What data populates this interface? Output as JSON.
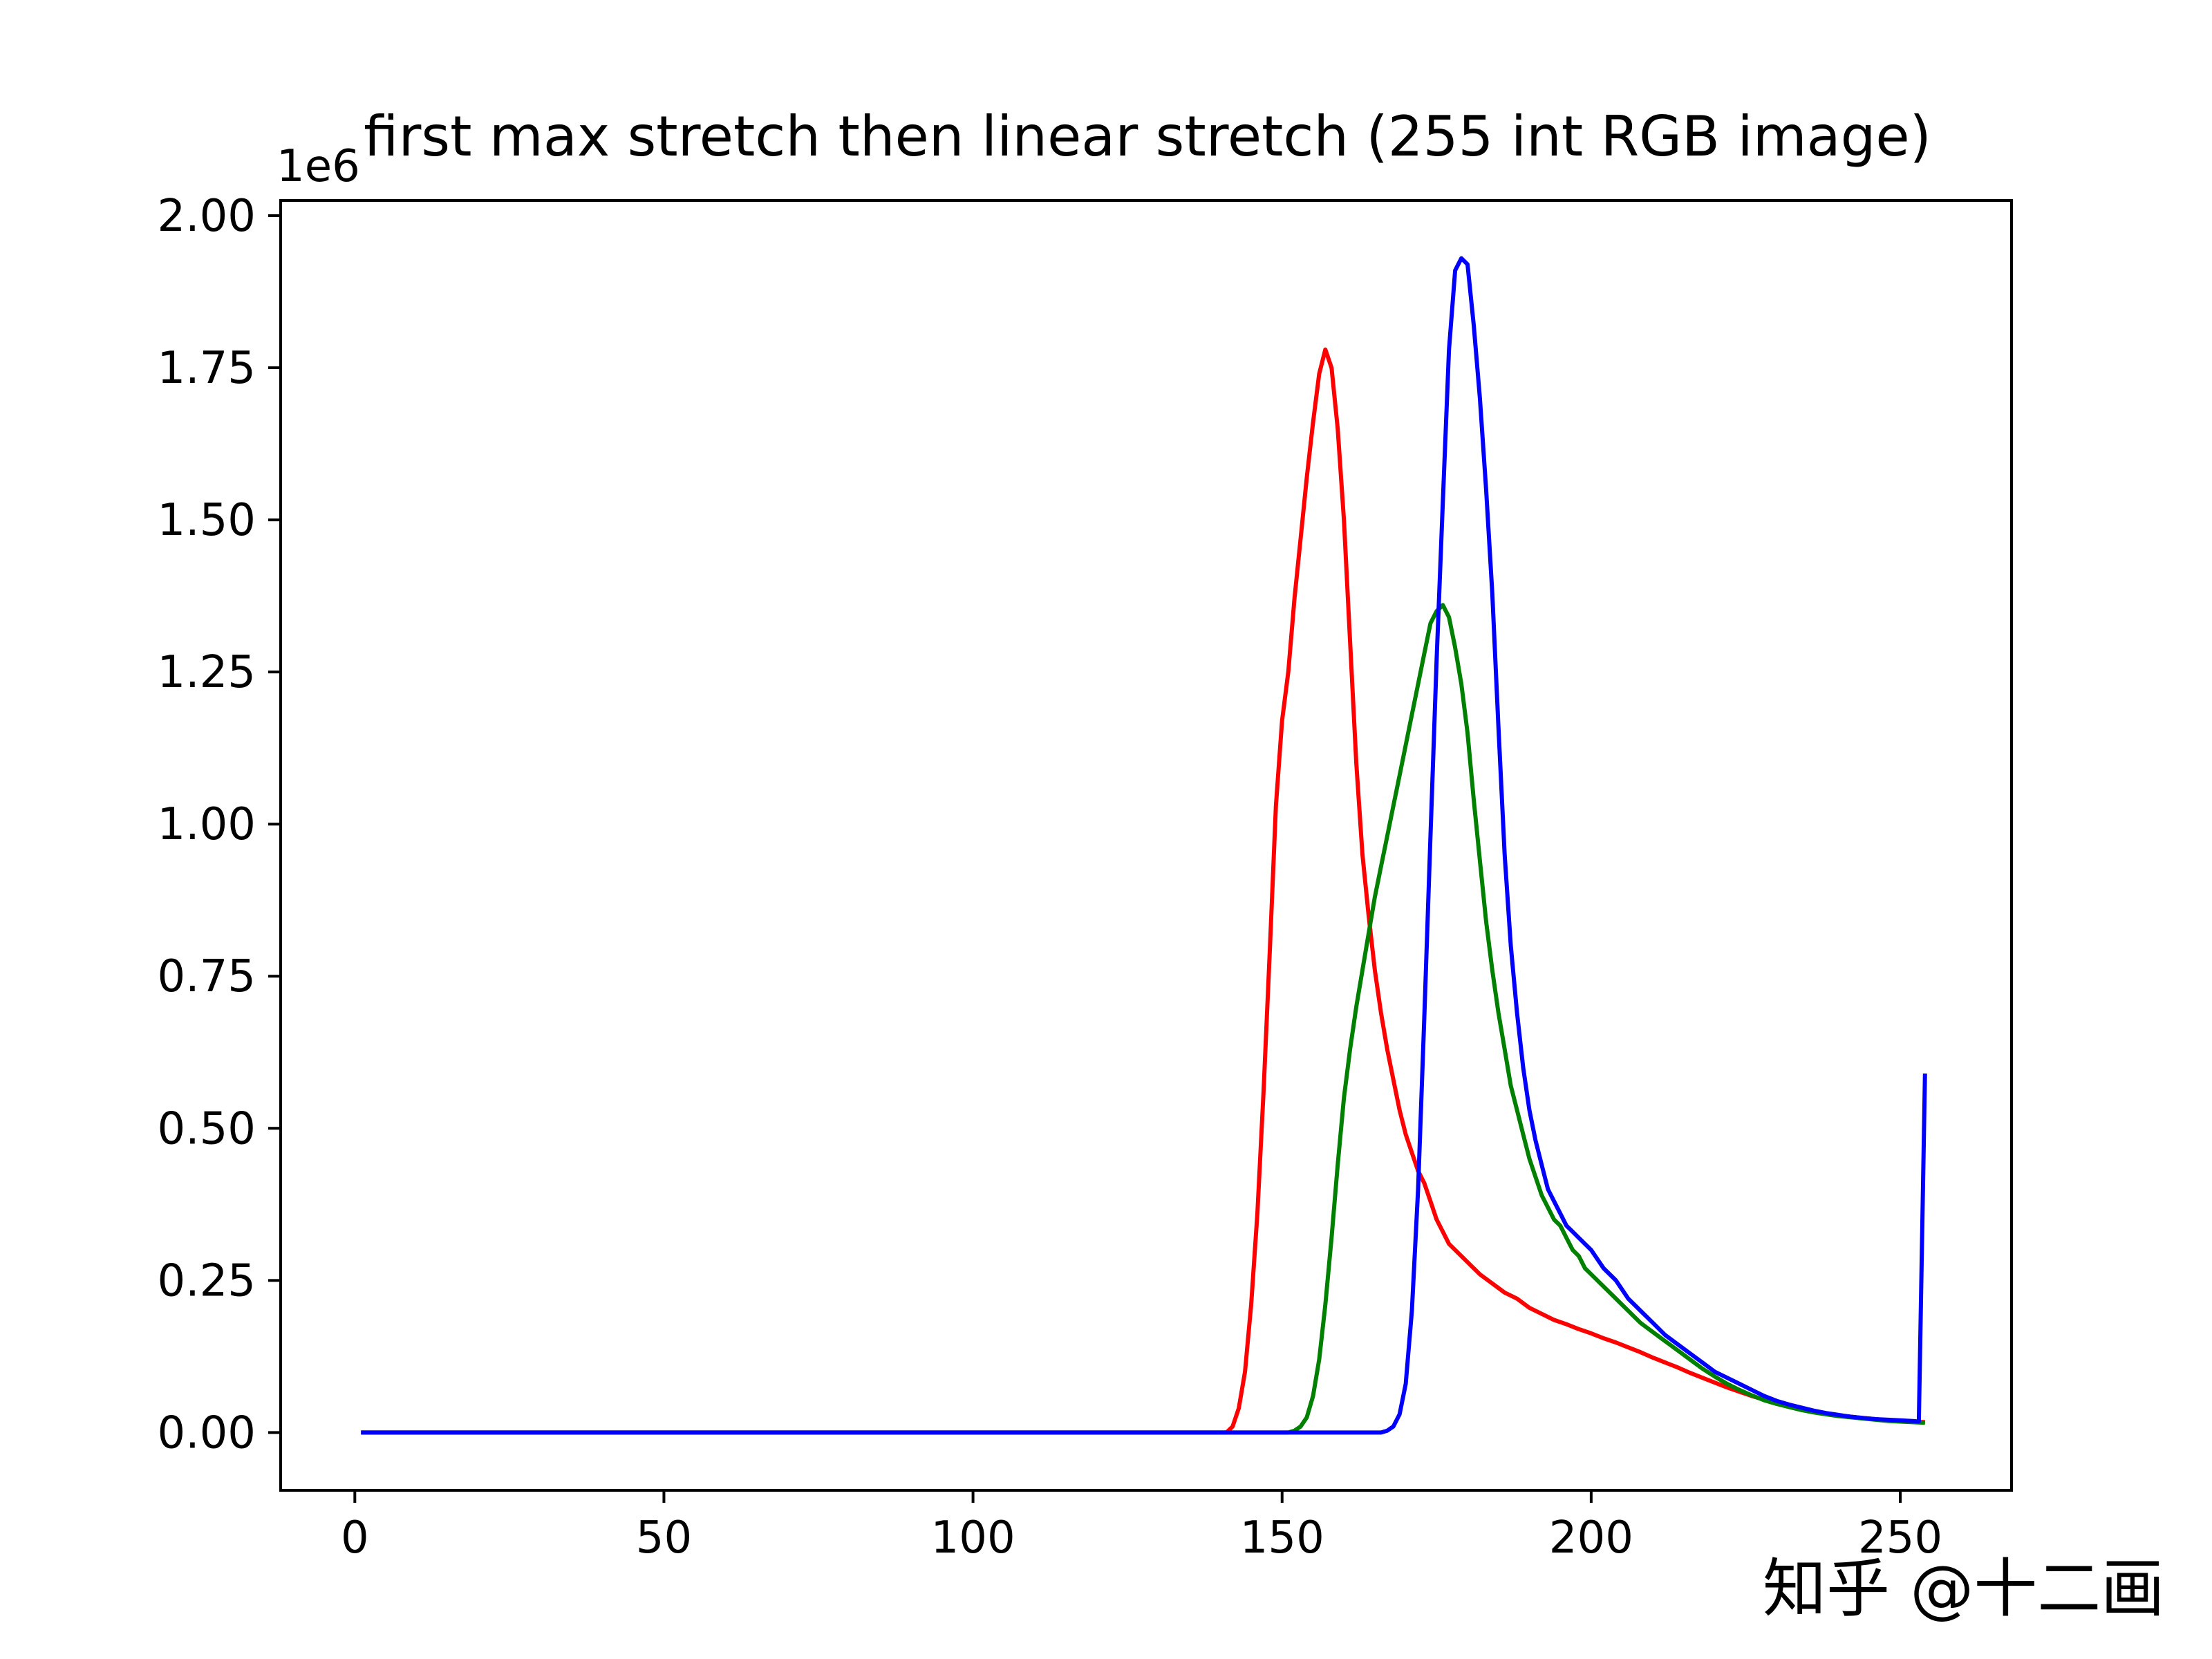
{
  "chart_data": {
    "type": "line",
    "title": "first max stretch then linear stretch (255 int RGB image)",
    "xlabel": "",
    "ylabel": "",
    "y_offset_text": "1e6",
    "y_scale_factor": 1000000,
    "xlim": [
      -12,
      268
    ],
    "ylim": [
      -0.095,
      2.025
    ],
    "x_ticks": [
      0,
      50,
      100,
      150,
      200,
      250
    ],
    "x_tick_labels": [
      "0",
      "50",
      "100",
      "150",
      "200",
      "250"
    ],
    "y_ticks": [
      0,
      0.25,
      0.5,
      0.75,
      1.0,
      1.25,
      1.5,
      1.75,
      2.0
    ],
    "y_tick_labels": [
      "0.00",
      "0.25",
      "0.50",
      "0.75",
      "1.00",
      "1.25",
      "1.50",
      "1.75",
      "2.00"
    ],
    "grid": false,
    "legend": "none",
    "series": [
      {
        "color": "#ff0000",
        "points": [
          [
            1,
            0
          ],
          [
            141,
            0
          ],
          [
            142,
            0.01
          ],
          [
            143,
            0.04
          ],
          [
            144,
            0.1
          ],
          [
            145,
            0.21
          ],
          [
            146,
            0.36
          ],
          [
            147,
            0.56
          ],
          [
            148,
            0.79
          ],
          [
            149,
            1.03
          ],
          [
            150,
            1.17
          ],
          [
            151,
            1.25
          ],
          [
            152,
            1.37
          ],
          [
            153,
            1.47
          ],
          [
            154,
            1.57
          ],
          [
            155,
            1.66
          ],
          [
            156,
            1.74
          ],
          [
            157,
            1.78
          ],
          [
            158,
            1.75
          ],
          [
            159,
            1.65
          ],
          [
            160,
            1.5
          ],
          [
            161,
            1.3
          ],
          [
            162,
            1.1
          ],
          [
            163,
            0.95
          ],
          [
            164,
            0.85
          ],
          [
            165,
            0.76
          ],
          [
            166,
            0.69
          ],
          [
            167,
            0.63
          ],
          [
            168,
            0.58
          ],
          [
            169,
            0.53
          ],
          [
            170,
            0.49
          ],
          [
            171,
            0.46
          ],
          [
            172,
            0.43
          ],
          [
            173,
            0.41
          ],
          [
            174,
            0.38
          ],
          [
            175,
            0.35
          ],
          [
            176,
            0.33
          ],
          [
            177,
            0.31
          ],
          [
            178,
            0.3
          ],
          [
            180,
            0.28
          ],
          [
            182,
            0.26
          ],
          [
            184,
            0.245
          ],
          [
            186,
            0.23
          ],
          [
            188,
            0.22
          ],
          [
            190,
            0.205
          ],
          [
            192,
            0.195
          ],
          [
            194,
            0.185
          ],
          [
            196,
            0.178
          ],
          [
            198,
            0.17
          ],
          [
            200,
            0.163
          ],
          [
            202,
            0.155
          ],
          [
            204,
            0.148
          ],
          [
            206,
            0.14
          ],
          [
            208,
            0.132
          ],
          [
            210,
            0.123
          ],
          [
            212,
            0.115
          ],
          [
            214,
            0.107
          ],
          [
            216,
            0.098
          ],
          [
            218,
            0.09
          ],
          [
            220,
            0.082
          ],
          [
            222,
            0.074
          ],
          [
            224,
            0.067
          ],
          [
            226,
            0.06
          ],
          [
            228,
            0.054
          ],
          [
            230,
            0.048
          ],
          [
            232,
            0.043
          ],
          [
            234,
            0.039
          ],
          [
            236,
            0.035
          ],
          [
            238,
            0.031
          ],
          [
            240,
            0.028
          ],
          [
            242,
            0.026
          ],
          [
            244,
            0.024
          ],
          [
            246,
            0.022
          ],
          [
            248,
            0.02
          ],
          [
            250,
            0.019
          ],
          [
            252,
            0.018
          ],
          [
            254,
            0.017
          ]
        ]
      },
      {
        "color": "#008000",
        "points": [
          [
            1,
            0
          ],
          [
            151,
            0
          ],
          [
            152,
            0.003
          ],
          [
            153,
            0.01
          ],
          [
            154,
            0.025
          ],
          [
            155,
            0.06
          ],
          [
            156,
            0.12
          ],
          [
            157,
            0.21
          ],
          [
            158,
            0.32
          ],
          [
            159,
            0.44
          ],
          [
            160,
            0.55
          ],
          [
            161,
            0.63
          ],
          [
            162,
            0.7
          ],
          [
            163,
            0.76
          ],
          [
            164,
            0.82
          ],
          [
            165,
            0.88
          ],
          [
            166,
            0.93
          ],
          [
            167,
            0.98
          ],
          [
            168,
            1.03
          ],
          [
            169,
            1.08
          ],
          [
            170,
            1.13
          ],
          [
            171,
            1.18
          ],
          [
            172,
            1.23
          ],
          [
            173,
            1.28
          ],
          [
            174,
            1.33
          ],
          [
            175,
            1.35
          ],
          [
            176,
            1.36
          ],
          [
            177,
            1.34
          ],
          [
            178,
            1.29
          ],
          [
            179,
            1.23
          ],
          [
            180,
            1.15
          ],
          [
            181,
            1.04
          ],
          [
            182,
            0.94
          ],
          [
            183,
            0.84
          ],
          [
            184,
            0.76
          ],
          [
            185,
            0.69
          ],
          [
            186,
            0.63
          ],
          [
            187,
            0.57
          ],
          [
            188,
            0.53
          ],
          [
            189,
            0.49
          ],
          [
            190,
            0.45
          ],
          [
            191,
            0.42
          ],
          [
            192,
            0.39
          ],
          [
            193,
            0.37
          ],
          [
            194,
            0.35
          ],
          [
            195,
            0.34
          ],
          [
            196,
            0.32
          ],
          [
            197,
            0.3
          ],
          [
            198,
            0.29
          ],
          [
            199,
            0.27
          ],
          [
            200,
            0.26
          ],
          [
            202,
            0.24
          ],
          [
            204,
            0.22
          ],
          [
            206,
            0.2
          ],
          [
            208,
            0.18
          ],
          [
            210,
            0.165
          ],
          [
            212,
            0.15
          ],
          [
            214,
            0.135
          ],
          [
            216,
            0.12
          ],
          [
            218,
            0.105
          ],
          [
            220,
            0.092
          ],
          [
            222,
            0.08
          ],
          [
            224,
            0.07
          ],
          [
            226,
            0.061
          ],
          [
            228,
            0.053
          ],
          [
            230,
            0.047
          ],
          [
            232,
            0.042
          ],
          [
            234,
            0.037
          ],
          [
            236,
            0.033
          ],
          [
            238,
            0.03
          ],
          [
            240,
            0.027
          ],
          [
            242,
            0.025
          ],
          [
            244,
            0.023
          ],
          [
            246,
            0.021
          ],
          [
            248,
            0.019
          ],
          [
            250,
            0.018
          ],
          [
            252,
            0.017
          ],
          [
            254,
            0.016
          ]
        ]
      },
      {
        "color": "#0000ff",
        "points": [
          [
            1,
            0
          ],
          [
            166,
            0
          ],
          [
            167,
            0.003
          ],
          [
            168,
            0.01
          ],
          [
            169,
            0.03
          ],
          [
            170,
            0.08
          ],
          [
            171,
            0.2
          ],
          [
            172,
            0.4
          ],
          [
            173,
            0.68
          ],
          [
            174,
            0.98
          ],
          [
            175,
            1.27
          ],
          [
            176,
            1.53
          ],
          [
            177,
            1.78
          ],
          [
            178,
            1.91
          ],
          [
            179,
            1.93
          ],
          [
            180,
            1.92
          ],
          [
            181,
            1.82
          ],
          [
            182,
            1.7
          ],
          [
            183,
            1.55
          ],
          [
            184,
            1.38
          ],
          [
            185,
            1.16
          ],
          [
            186,
            0.95
          ],
          [
            187,
            0.8
          ],
          [
            188,
            0.69
          ],
          [
            189,
            0.6
          ],
          [
            190,
            0.53
          ],
          [
            191,
            0.48
          ],
          [
            192,
            0.44
          ],
          [
            193,
            0.4
          ],
          [
            194,
            0.38
          ],
          [
            195,
            0.36
          ],
          [
            196,
            0.34
          ],
          [
            197,
            0.33
          ],
          [
            198,
            0.32
          ],
          [
            199,
            0.31
          ],
          [
            200,
            0.3
          ],
          [
            202,
            0.27
          ],
          [
            204,
            0.25
          ],
          [
            206,
            0.22
          ],
          [
            208,
            0.2
          ],
          [
            210,
            0.18
          ],
          [
            212,
            0.16
          ],
          [
            214,
            0.145
          ],
          [
            216,
            0.13
          ],
          [
            218,
            0.115
          ],
          [
            220,
            0.1
          ],
          [
            222,
            0.09
          ],
          [
            224,
            0.08
          ],
          [
            226,
            0.07
          ],
          [
            228,
            0.06
          ],
          [
            230,
            0.052
          ],
          [
            232,
            0.046
          ],
          [
            234,
            0.041
          ],
          [
            236,
            0.036
          ],
          [
            238,
            0.032
          ],
          [
            240,
            0.029
          ],
          [
            242,
            0.026
          ],
          [
            244,
            0.024
          ],
          [
            246,
            0.022
          ],
          [
            248,
            0.021
          ],
          [
            250,
            0.02
          ],
          [
            252,
            0.019
          ],
          [
            253,
            0.018
          ],
          [
            254,
            0.59
          ]
        ]
      }
    ]
  },
  "watermark": {
    "text": "知乎 @十二画",
    "color": "#c8c8c8"
  }
}
